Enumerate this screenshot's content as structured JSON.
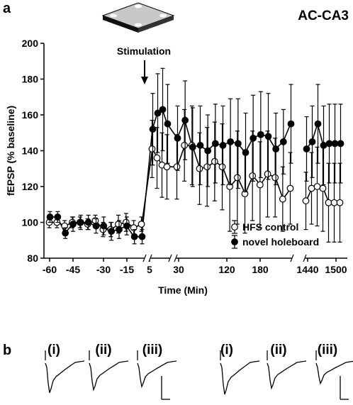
{
  "figure": {
    "panel_a_label": "a",
    "panel_b_label": "b",
    "region_label": "AC-CA3",
    "stimulation_label": "Stimulation",
    "device_icon": "holeboard-icon"
  },
  "chart_data": {
    "type": "scatter",
    "title": "",
    "xlabel": "Time (Min)",
    "ylabel": "fEPSP (% baseline)",
    "ylim": [
      80,
      200
    ],
    "yticks": [
      80,
      100,
      120,
      140,
      160,
      180,
      200
    ],
    "xticks": [
      "-60",
      "-45",
      "-30",
      "-15",
      "5",
      "30",
      "120",
      "180",
      "1440",
      "1500"
    ],
    "legend_position": "bottom-right",
    "annotation": "Stimulation",
    "x_segments": [
      {
        "x": [
          -60,
          -55,
          -50,
          -45,
          -40,
          -35,
          -30,
          -25,
          -20,
          -15,
          -10,
          -5,
          0
        ],
        "series": [
          {
            "name": "HFS control",
            "marker": "open-circle",
            "values": [
              100,
              100,
              98,
              100,
              100,
              99,
              101,
              96,
              96,
              99,
              100,
              97,
              99
            ],
            "errors": [
              3,
              3,
              3,
              3,
              3,
              3,
              3,
              4,
              4,
              5,
              5,
              4,
              4
            ]
          },
          {
            "name": "novel holeboard",
            "marker": "filled-circle",
            "values": [
              103,
              103,
              94,
              99,
              100,
              100,
              98,
              98,
              95,
              96,
              98,
              92,
              92
            ],
            "errors": [
              3,
              3,
              3,
              4,
              4,
              4,
              4,
              5,
              5,
              5,
              5,
              4,
              4
            ]
          }
        ]
      },
      {
        "x": [
          5,
          10,
          15,
          20
        ],
        "series": [
          {
            "name": "HFS control",
            "values": [
              141,
              136,
              132,
              131
            ],
            "errors": [
              16,
              17,
              18,
              18
            ]
          },
          {
            "name": "novel holeboard",
            "values": [
              152,
              161,
              163,
              155
            ],
            "errors": [
              20,
              22,
              23,
              22
            ]
          }
        ]
      },
      {
        "x": [
          30,
          40,
          50,
          60,
          70,
          80,
          90,
          100,
          110,
          120,
          130,
          140,
          150,
          160,
          170,
          180
        ],
        "series": [
          {
            "name": "HFS control",
            "values": [
              131,
              143,
              143,
              130,
              131,
              134,
              131,
              120,
              125,
              116,
              126,
              121,
              127,
              125,
              113,
              119
            ],
            "errors": [
              18,
              20,
              22,
              20,
              22,
              22,
              24,
              25,
              26,
              22,
              25,
              24,
              24,
              22,
              18,
              20
            ]
          },
          {
            "name": "novel holeboard",
            "values": [
              147,
              157,
              142,
              143,
              140,
              144,
              143,
              145,
              144,
              139,
              147,
              149,
              148,
              141,
              145,
              155
            ],
            "errors": [
              18,
              22,
              22,
              22,
              20,
              22,
              22,
              24,
              25,
              22,
              24,
              24,
              24,
              20,
              18,
              22
            ]
          }
        ]
      },
      {
        "x": [
          1440,
          1450,
          1460,
          1470,
          1480,
          1490,
          1500
        ],
        "series": [
          {
            "name": "HFS control",
            "values": [
              112,
              119,
              120,
              119,
              111,
              111,
              111
            ],
            "errors": [
              16,
              20,
              22,
              24,
              22,
              22,
              22
            ]
          },
          {
            "name": "novel holeboard",
            "values": [
              141,
              145,
              155,
              143,
              144,
              144,
              144
            ],
            "errors": [
              18,
              20,
              22,
              22,
              22,
              22,
              22
            ]
          }
        ]
      }
    ]
  },
  "panel_b": {
    "traces": [
      {
        "label": "(i)",
        "group": "HFS control"
      },
      {
        "label": "(ii)",
        "group": "HFS control"
      },
      {
        "label": "(iii)",
        "group": "HFS control"
      },
      {
        "label": "(i)",
        "group": "novel holeboard"
      },
      {
        "label": "(ii)",
        "group": "novel holeboard"
      },
      {
        "label": "(iii)",
        "group": "novel holeboard"
      }
    ]
  }
}
